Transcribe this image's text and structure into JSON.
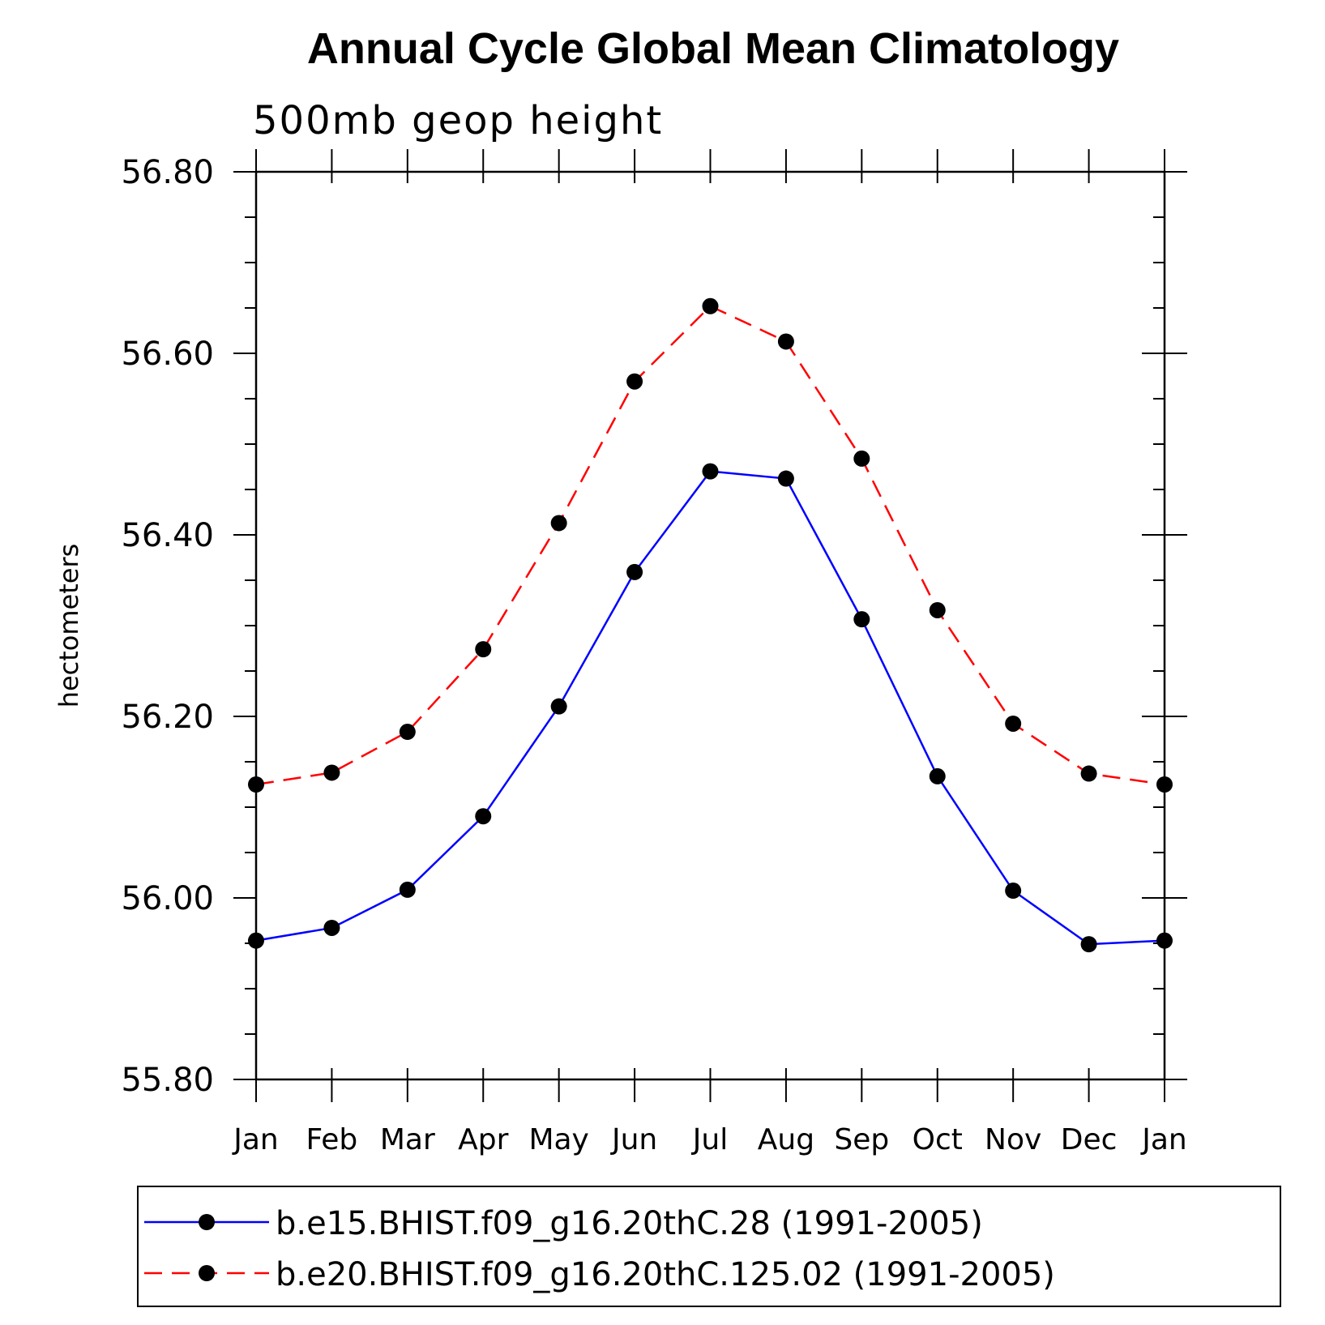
{
  "chart_data": {
    "type": "line",
    "title": "Annual Cycle Global Mean Climatology",
    "subtitle": "500mb geop height",
    "xlabel": "",
    "ylabel": "hectometers",
    "categories": [
      "Jan",
      "Feb",
      "Mar",
      "Apr",
      "May",
      "Jun",
      "Jul",
      "Aug",
      "Sep",
      "Oct",
      "Nov",
      "Dec",
      "Jan"
    ],
    "ylim": [
      55.8,
      56.8
    ],
    "yticks": [
      "55.80",
      "56.00",
      "56.20",
      "56.40",
      "56.60",
      "56.80"
    ],
    "grid": false,
    "legend_position": "bottom",
    "series": [
      {
        "name": "b.e15.BHIST.f09_g16.20thC.28 (1991-2005)",
        "color": "#0000ff",
        "line_style": "solid",
        "marker": "filled-circle",
        "values": [
          55.953,
          55.967,
          56.009,
          56.09,
          56.211,
          56.359,
          56.47,
          56.462,
          56.307,
          56.134,
          56.008,
          55.949,
          55.953
        ]
      },
      {
        "name": "b.e20.BHIST.f09_g16.20thC.125.02 (1991-2005)",
        "color": "#ff0000",
        "line_style": "dashed",
        "marker": "filled-circle",
        "values": [
          56.125,
          56.138,
          56.183,
          56.274,
          56.413,
          56.569,
          56.652,
          56.613,
          56.484,
          56.317,
          56.192,
          56.137,
          56.125
        ]
      }
    ]
  }
}
